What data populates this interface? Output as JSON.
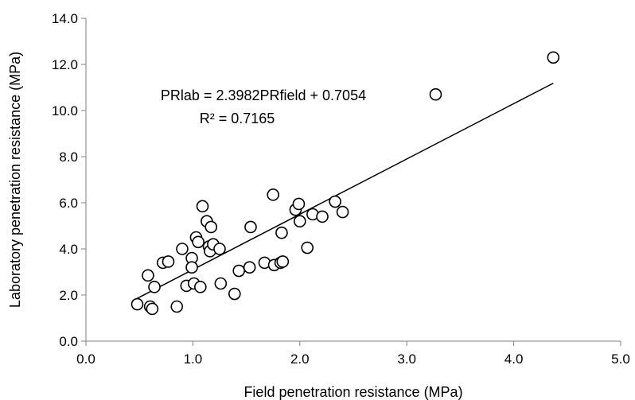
{
  "chart_data": {
    "type": "scatter",
    "xlabel": "Field penetration resistance (MPa)",
    "ylabel": "Laboratory penetration resistance (MPa)",
    "xlim": [
      0,
      5
    ],
    "ylim": [
      0,
      14
    ],
    "x_ticks": [
      "0.0",
      "1.0",
      "2.0",
      "3.0",
      "4.0",
      "5.0"
    ],
    "y_ticks": [
      "0.0",
      "2.0",
      "4.0",
      "6.0",
      "8.0",
      "10.0",
      "12.0",
      "14.0"
    ],
    "grid": false,
    "legend": "none",
    "trendline": {
      "slope": 2.3982,
      "intercept": 0.7054,
      "x_range": [
        0.48,
        4.37
      ],
      "equation_label": "PRlab = 2.3982PRfield + 0.7054",
      "r2_label": "R² = 0.7165"
    },
    "series": [
      {
        "marker": "open-circle",
        "points": [
          {
            "x": 0.48,
            "y": 1.6
          },
          {
            "x": 0.58,
            "y": 2.85
          },
          {
            "x": 0.6,
            "y": 1.5
          },
          {
            "x": 0.62,
            "y": 1.4
          },
          {
            "x": 0.64,
            "y": 2.35
          },
          {
            "x": 0.72,
            "y": 3.4
          },
          {
            "x": 0.77,
            "y": 3.45
          },
          {
            "x": 0.85,
            "y": 1.5
          },
          {
            "x": 0.9,
            "y": 4.0
          },
          {
            "x": 0.94,
            "y": 2.4
          },
          {
            "x": 0.99,
            "y": 3.6
          },
          {
            "x": 0.99,
            "y": 3.2
          },
          {
            "x": 1.01,
            "y": 2.5
          },
          {
            "x": 1.03,
            "y": 4.5
          },
          {
            "x": 1.05,
            "y": 4.3
          },
          {
            "x": 1.07,
            "y": 2.35
          },
          {
            "x": 1.09,
            "y": 5.85
          },
          {
            "x": 1.13,
            "y": 5.2
          },
          {
            "x": 1.15,
            "y": 4.1
          },
          {
            "x": 1.16,
            "y": 3.9
          },
          {
            "x": 1.17,
            "y": 4.95
          },
          {
            "x": 1.19,
            "y": 4.2
          },
          {
            "x": 1.25,
            "y": 4.0
          },
          {
            "x": 1.26,
            "y": 2.5
          },
          {
            "x": 1.39,
            "y": 2.05
          },
          {
            "x": 1.43,
            "y": 3.05
          },
          {
            "x": 1.53,
            "y": 3.2
          },
          {
            "x": 1.54,
            "y": 4.95
          },
          {
            "x": 1.67,
            "y": 3.4
          },
          {
            "x": 1.75,
            "y": 6.35
          },
          {
            "x": 1.76,
            "y": 3.3
          },
          {
            "x": 1.82,
            "y": 3.4
          },
          {
            "x": 1.83,
            "y": 4.7
          },
          {
            "x": 1.84,
            "y": 3.45
          },
          {
            "x": 1.96,
            "y": 5.7
          },
          {
            "x": 1.99,
            "y": 5.95
          },
          {
            "x": 2.0,
            "y": 5.2
          },
          {
            "x": 2.07,
            "y": 4.05
          },
          {
            "x": 2.12,
            "y": 5.5
          },
          {
            "x": 2.21,
            "y": 5.4
          },
          {
            "x": 2.33,
            "y": 6.05
          },
          {
            "x": 2.4,
            "y": 5.6
          },
          {
            "x": 3.27,
            "y": 10.7
          },
          {
            "x": 4.37,
            "y": 12.3
          }
        ]
      }
    ]
  }
}
